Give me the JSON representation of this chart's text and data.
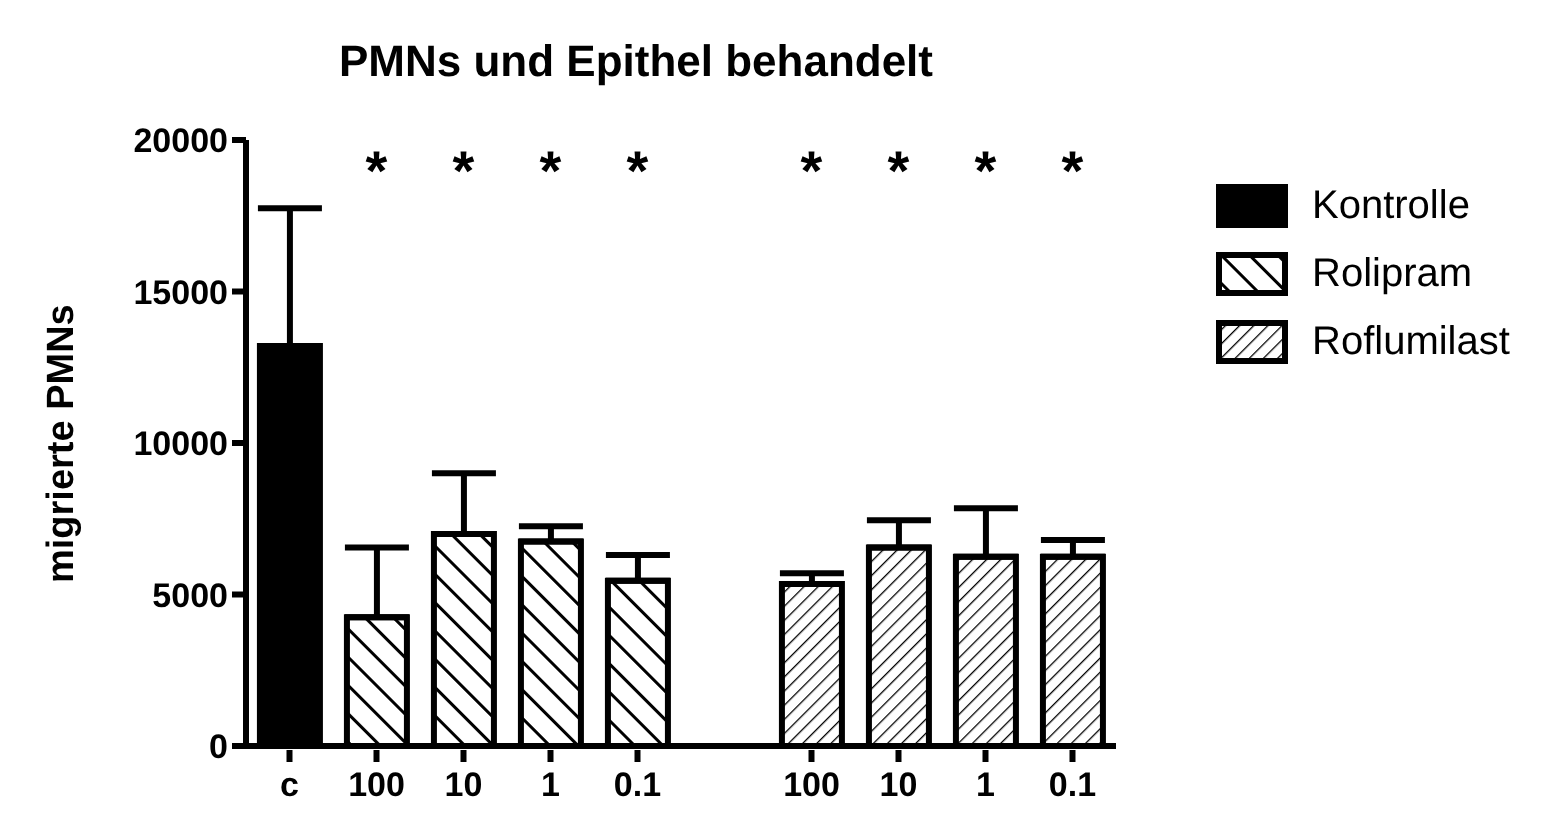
{
  "chart_data": {
    "type": "bar",
    "title": "PMNs und Epithel behandelt",
    "ylabel": "migrierte PMNs",
    "categories": [
      "c",
      "100",
      "10",
      "1",
      "0.1",
      null,
      "100",
      "10",
      "1",
      "0.1"
    ],
    "series": [
      {
        "name": "Kontrolle",
        "color": "#000000",
        "values": [
          13200,
          null,
          null,
          null,
          null,
          null,
          null,
          null,
          null,
          null
        ],
        "errors": [
          4550,
          null,
          null,
          null,
          null,
          null,
          null,
          null,
          null,
          null
        ]
      },
      {
        "name": "Rolipram",
        "color": "#000000",
        "values": [
          null,
          4250,
          7000,
          6750,
          5450,
          null,
          null,
          null,
          null,
          null
        ],
        "errors": [
          null,
          2300,
          2000,
          500,
          850,
          null,
          null,
          null,
          null,
          null
        ]
      },
      {
        "name": "Roflumilast",
        "color": "#000000",
        "values": [
          null,
          null,
          null,
          null,
          null,
          null,
          5350,
          6550,
          6250,
          6250
        ],
        "errors": [
          null,
          null,
          null,
          null,
          null,
          null,
          350,
          900,
          1600,
          550
        ]
      }
    ],
    "annotations": [
      "*",
      "*",
      "*",
      "*",
      "*",
      "*",
      "*",
      "*"
    ],
    "ylim": [
      0,
      20000
    ],
    "yticks": [
      0,
      5000,
      10000,
      15000,
      20000
    ],
    "legend": "top right"
  }
}
